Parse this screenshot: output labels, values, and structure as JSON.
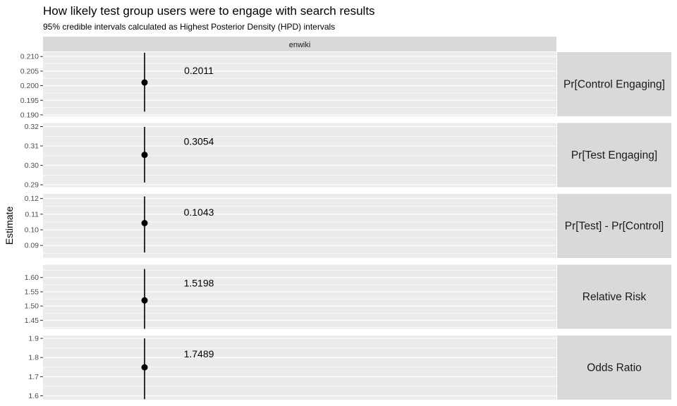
{
  "chart_data": {
    "type": "scatter",
    "title": "How likely test group users were to engage with search results",
    "subtitle": "95% credible intervals calculated as Highest Posterior Density (HPD) intervals",
    "ylabel": "Estimate",
    "column_strip": "enwiki",
    "colors": {
      "panel": "#ebebeb",
      "strip": "#d9d9d9",
      "grid": "#ffffff",
      "mark": "#000000",
      "tick_label": "#4d4d4d"
    },
    "panels": [
      {
        "name": "Pr[Control Engaging]",
        "ylim": [
          0.1895,
          0.2115
        ],
        "ticks": [
          0.19,
          0.195,
          0.2,
          0.205,
          0.21
        ],
        "tick_labels": [
          "0.190",
          "0.195",
          "0.200",
          "0.205",
          "0.210"
        ],
        "estimate": 0.2011,
        "lower": 0.1911,
        "upper": 0.2113,
        "label": "0.2011"
      },
      {
        "name": "Pr[Test Engaging]",
        "ylim": [
          0.2888,
          0.3218
        ],
        "ticks": [
          0.29,
          0.3,
          0.31,
          0.32
        ],
        "tick_labels": [
          "0.29",
          "0.30",
          "0.31",
          "0.32"
        ],
        "estimate": 0.3054,
        "lower": 0.2912,
        "upper": 0.3198,
        "label": "0.3054"
      },
      {
        "name": "Pr[Test] - Pr[Control]",
        "ylim": [
          0.082,
          0.123
        ],
        "ticks": [
          0.09,
          0.1,
          0.11,
          0.12
        ],
        "tick_labels": [
          "0.09",
          "0.10",
          "0.11",
          "0.12"
        ],
        "estimate": 0.1043,
        "lower": 0.0855,
        "upper": 0.1213,
        "label": "0.1043"
      },
      {
        "name": "Relative Risk",
        "ylim": [
          1.42,
          1.645
        ],
        "ticks": [
          1.45,
          1.5,
          1.55,
          1.6
        ],
        "tick_labels": [
          "1.45",
          "1.50",
          "1.55",
          "1.60"
        ],
        "estimate": 1.5198,
        "lower": 1.42,
        "upper": 1.63,
        "label": "1.5198"
      },
      {
        "name": "Odds Ratio",
        "ylim": [
          1.58,
          1.915
        ],
        "ticks": [
          1.6,
          1.7,
          1.8,
          1.9
        ],
        "tick_labels": [
          "1.6",
          "1.7",
          "1.8",
          "1.9"
        ],
        "estimate": 1.7489,
        "lower": 1.5825,
        "upper": 1.9,
        "label": "1.7489"
      }
    ]
  }
}
